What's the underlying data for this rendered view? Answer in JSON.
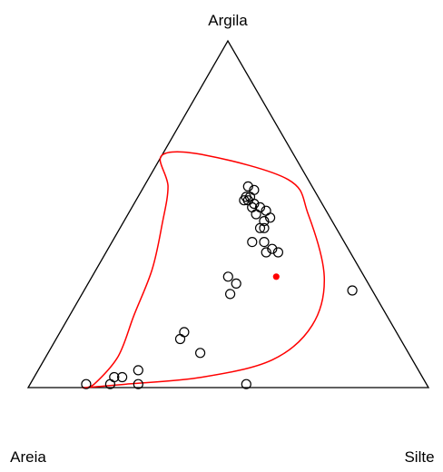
{
  "chart_data": {
    "type": "scatter",
    "subtype": "ternary",
    "axes": {
      "top": "Argila",
      "left": "Areia",
      "right": "Silte"
    },
    "colors": {
      "frame": "#000000",
      "points": "#000000",
      "highlight": "#ff0000",
      "region": "#ff0000"
    },
    "points": [
      {
        "sand": 0.16,
        "silt": 0.26,
        "clay": 0.58
      },
      {
        "sand": 0.15,
        "silt": 0.28,
        "clay": 0.57
      },
      {
        "sand": 0.18,
        "silt": 0.27,
        "clay": 0.55
      },
      {
        "sand": 0.17,
        "silt": 0.28,
        "clay": 0.55
      },
      {
        "sand": 0.19,
        "silt": 0.27,
        "clay": 0.54
      },
      {
        "sand": 0.18,
        "silt": 0.28,
        "clay": 0.54
      },
      {
        "sand": 0.17,
        "silt": 0.3,
        "clay": 0.53
      },
      {
        "sand": 0.18,
        "silt": 0.3,
        "clay": 0.52
      },
      {
        "sand": 0.16,
        "silt": 0.32,
        "clay": 0.52
      },
      {
        "sand": 0.18,
        "silt": 0.32,
        "clay": 0.5
      },
      {
        "sand": 0.15,
        "silt": 0.34,
        "clay": 0.51
      },
      {
        "sand": 0.15,
        "silt": 0.36,
        "clay": 0.49
      },
      {
        "sand": 0.17,
        "silt": 0.35,
        "clay": 0.48
      },
      {
        "sand": 0.19,
        "silt": 0.35,
        "clay": 0.46
      },
      {
        "sand": 0.18,
        "silt": 0.36,
        "clay": 0.46
      },
      {
        "sand": 0.23,
        "silt": 0.35,
        "clay": 0.42
      },
      {
        "sand": 0.2,
        "silt": 0.38,
        "clay": 0.42
      },
      {
        "sand": 0.21,
        "silt": 0.4,
        "clay": 0.39
      },
      {
        "sand": 0.19,
        "silt": 0.41,
        "clay": 0.4
      },
      {
        "sand": 0.18,
        "silt": 0.43,
        "clay": 0.39
      },
      {
        "sand": 0.34,
        "silt": 0.34,
        "clay": 0.32
      },
      {
        "sand": 0.33,
        "silt": 0.37,
        "clay": 0.3
      },
      {
        "sand": 0.36,
        "silt": 0.37,
        "clay": 0.27
      },
      {
        "sand": 0.05,
        "silt": 0.67,
        "clay": 0.28
      },
      {
        "sand": 0.53,
        "silt": 0.31,
        "clay": 0.16
      },
      {
        "sand": 0.55,
        "silt": 0.31,
        "clay": 0.14
      },
      {
        "sand": 0.52,
        "silt": 0.38,
        "clay": 0.1
      },
      {
        "sand": 0.7,
        "silt": 0.25,
        "clay": 0.05
      },
      {
        "sand": 0.77,
        "silt": 0.2,
        "clay": 0.03
      },
      {
        "sand": 0.75,
        "silt": 0.22,
        "clay": 0.03
      },
      {
        "sand": 0.79,
        "silt": 0.2,
        "clay": 0.01
      },
      {
        "sand": 0.72,
        "silt": 0.27,
        "clay": 0.01
      },
      {
        "sand": 0.85,
        "silt": 0.14,
        "clay": 0.01
      },
      {
        "sand": 0.45,
        "silt": 0.54,
        "clay": 0.01
      }
    ],
    "highlight_point": {
      "sand": 0.22,
      "silt": 0.46,
      "clay": 0.32
    },
    "region_boundary": [
      {
        "sand": 0.33,
        "silt": 0.0,
        "clay": 0.67
      },
      {
        "sand": 0.36,
        "silt": 0.06,
        "clay": 0.58
      },
      {
        "sand": 0.43,
        "silt": 0.1,
        "clay": 0.47
      },
      {
        "sand": 0.52,
        "silt": 0.14,
        "clay": 0.34
      },
      {
        "sand": 0.63,
        "silt": 0.16,
        "clay": 0.21
      },
      {
        "sand": 0.73,
        "silt": 0.18,
        "clay": 0.09
      },
      {
        "sand": 0.83,
        "silt": 0.16,
        "clay": 0.01
      },
      {
        "sand": 0.86,
        "silt": 0.14,
        "clay": 0.0
      },
      {
        "sand": 0.75,
        "silt": 0.24,
        "clay": 0.01
      },
      {
        "sand": 0.55,
        "silt": 0.42,
        "clay": 0.03
      },
      {
        "sand": 0.35,
        "silt": 0.57,
        "clay": 0.08
      },
      {
        "sand": 0.2,
        "silt": 0.62,
        "clay": 0.18
      },
      {
        "sand": 0.1,
        "silt": 0.58,
        "clay": 0.32
      },
      {
        "sand": 0.05,
        "silt": 0.45,
        "clay": 0.5
      },
      {
        "sand": 0.05,
        "silt": 0.35,
        "clay": 0.6
      },
      {
        "sand": 0.22,
        "silt": 0.11,
        "clay": 0.67
      },
      {
        "sand": 0.33,
        "silt": 0.0,
        "clay": 0.67
      }
    ]
  }
}
